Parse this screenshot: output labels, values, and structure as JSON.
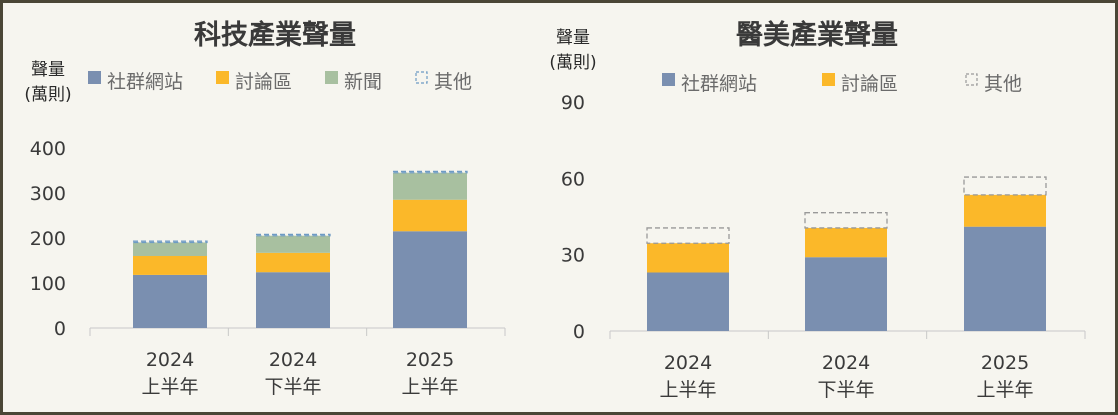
{
  "chart_data": [
    {
      "type": "bar",
      "stacked": true,
      "title": "科技產業聲量",
      "ylabel": "聲量 (萬則)",
      "ylabel_lines": [
        "聲量",
        "(萬則)"
      ],
      "ylim": [
        0,
        400
      ],
      "yticks": [
        0,
        100,
        200,
        300,
        400
      ],
      "grid": false,
      "legend_position": "top",
      "categories": [
        [
          "2024",
          "上半年"
        ],
        [
          "2024",
          "下半年"
        ],
        [
          "2025",
          "上半年"
        ]
      ],
      "series": [
        {
          "name": "社群網站",
          "color": "#7a8fb0",
          "style": "solid",
          "values": [
            118,
            124,
            215
          ]
        },
        {
          "name": "討論區",
          "color": "#fbb829",
          "style": "solid",
          "values": [
            42,
            43,
            70
          ]
        },
        {
          "name": "新聞",
          "color": "#a8c0a0",
          "style": "solid",
          "values": [
            30,
            38,
            60
          ]
        },
        {
          "name": "其他",
          "color": "#6e9bc4",
          "style": "dashed",
          "values": [
            3,
            3,
            3
          ]
        }
      ]
    },
    {
      "type": "bar",
      "stacked": true,
      "title": "醫美產業聲量",
      "ylabel": "聲量 (萬則)",
      "ylabel_lines": [
        "聲量",
        "(萬則)"
      ],
      "ylim": [
        0,
        90
      ],
      "yticks": [
        0,
        30,
        60,
        90
      ],
      "grid": false,
      "legend_position": "top",
      "categories": [
        [
          "2024",
          "上半年"
        ],
        [
          "2024",
          "下半年"
        ],
        [
          "2025",
          "上半年"
        ]
      ],
      "series": [
        {
          "name": "社群網站",
          "color": "#7a8fb0",
          "style": "solid",
          "values": [
            23,
            29,
            41
          ]
        },
        {
          "name": "討論區",
          "color": "#fbb829",
          "style": "solid",
          "values": [
            11.5,
            11.5,
            12.5
          ]
        },
        {
          "name": "其他",
          "color": "#999999",
          "style": "dashed",
          "values": [
            6,
            6,
            7
          ]
        }
      ]
    }
  ]
}
